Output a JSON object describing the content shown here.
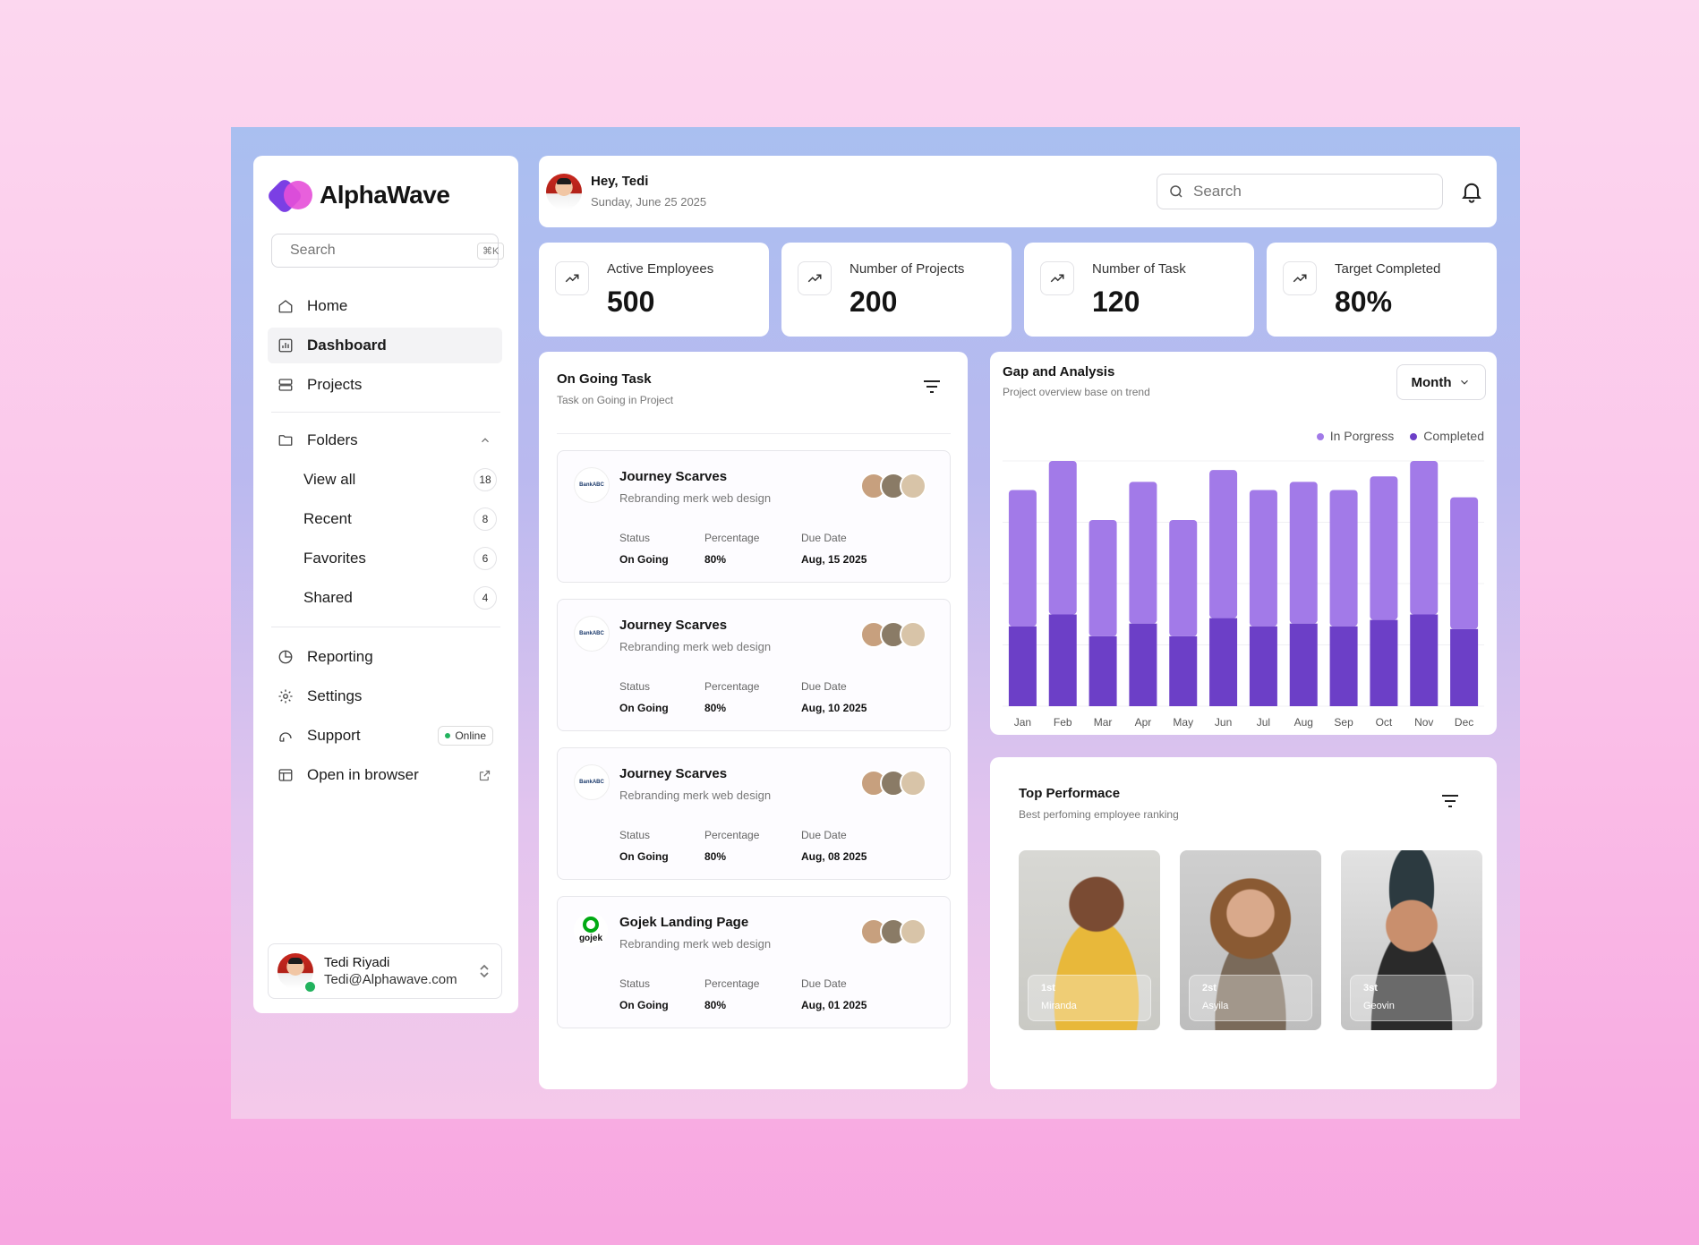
{
  "brand": {
    "name": "AlphaWave"
  },
  "sidebar": {
    "search_placeholder": "Search",
    "search_shortcut": "⌘K",
    "nav": [
      {
        "label": "Home",
        "icon": "home-icon"
      },
      {
        "label": "Dashboard",
        "icon": "dashboard-icon",
        "active": true
      },
      {
        "label": "Projects",
        "icon": "projects-icon"
      }
    ],
    "folders": {
      "label": "Folders",
      "items": [
        {
          "label": "View all",
          "count": "18"
        },
        {
          "label": "Recent",
          "count": "8"
        },
        {
          "label": "Favorites",
          "count": "6"
        },
        {
          "label": "Shared",
          "count": "4"
        }
      ]
    },
    "bottom_nav": [
      {
        "label": "Reporting",
        "icon": "reporting-icon"
      },
      {
        "label": "Settings",
        "icon": "settings-icon"
      },
      {
        "label": "Support",
        "icon": "support-icon",
        "badge": "Online"
      },
      {
        "label": "Open in browser",
        "icon": "browser-icon"
      }
    ],
    "user": {
      "name": "Tedi Riyadi",
      "email": "Tedi@Alphawave.com"
    }
  },
  "header": {
    "greeting": "Hey, Tedi",
    "date": "Sunday, June 25 2025",
    "search_placeholder": "Search"
  },
  "stats": [
    {
      "label": "Active Employees",
      "value": "500"
    },
    {
      "label": "Number of Projects",
      "value": "200"
    },
    {
      "label": "Number of Task",
      "value": "120"
    },
    {
      "label": "Target Completed",
      "value": "80%"
    }
  ],
  "ongoing": {
    "title": "On Going Task",
    "subtitle": "Task on Going in Project",
    "col_labels": {
      "status": "Status",
      "percentage": "Percentage",
      "due": "Due Date"
    },
    "tasks": [
      {
        "title": "Journey Scarves",
        "subtitle": "Rebranding merk web design",
        "logo": "BankABC",
        "status": "On Going",
        "percentage": "80%",
        "due": "Aug, 15 2025"
      },
      {
        "title": "Journey Scarves",
        "subtitle": "Rebranding merk web design",
        "logo": "BankABC",
        "status": "On Going",
        "percentage": "80%",
        "due": "Aug, 10 2025"
      },
      {
        "title": "Journey Scarves",
        "subtitle": "Rebranding merk web design",
        "logo": "BankABC",
        "status": "On Going",
        "percentage": "80%",
        "due": "Aug, 08 2025"
      },
      {
        "title": "Gojek Landing Page",
        "subtitle": "Rebranding merk web design",
        "logo": "gojek",
        "status": "On Going",
        "percentage": "80%",
        "due": "Aug, 01 2025"
      }
    ]
  },
  "gap": {
    "title": "Gap and Analysis",
    "subtitle": "Project overview base on trend",
    "period": "Month"
  },
  "chart_data": {
    "type": "bar",
    "stacked": true,
    "categories": [
      "Jan",
      "Feb",
      "Mar",
      "Apr",
      "May",
      "Jun",
      "Jul",
      "Aug",
      "Sep",
      "Oct",
      "Nov",
      "Dec"
    ],
    "series": [
      {
        "name": "Completed",
        "color": "#6c3fc7",
        "values": [
          88,
          101,
          77,
          91,
          77,
          97,
          88,
          91,
          88,
          95,
          101,
          85
        ]
      },
      {
        "name": "In Porgress",
        "color": "#a27ae8",
        "values": [
          150,
          169,
          128,
          156,
          128,
          163,
          150,
          156,
          150,
          158,
          169,
          145
        ]
      }
    ],
    "legend_position": "top-right",
    "grid": true
  },
  "top": {
    "title": "Top Performace",
    "subtitle": "Best perfoming employee ranking",
    "people": [
      {
        "rank": "1st",
        "name": "Miranda"
      },
      {
        "rank": "2st",
        "name": "Asyila"
      },
      {
        "rank": "3st",
        "name": "Geovin"
      }
    ]
  }
}
